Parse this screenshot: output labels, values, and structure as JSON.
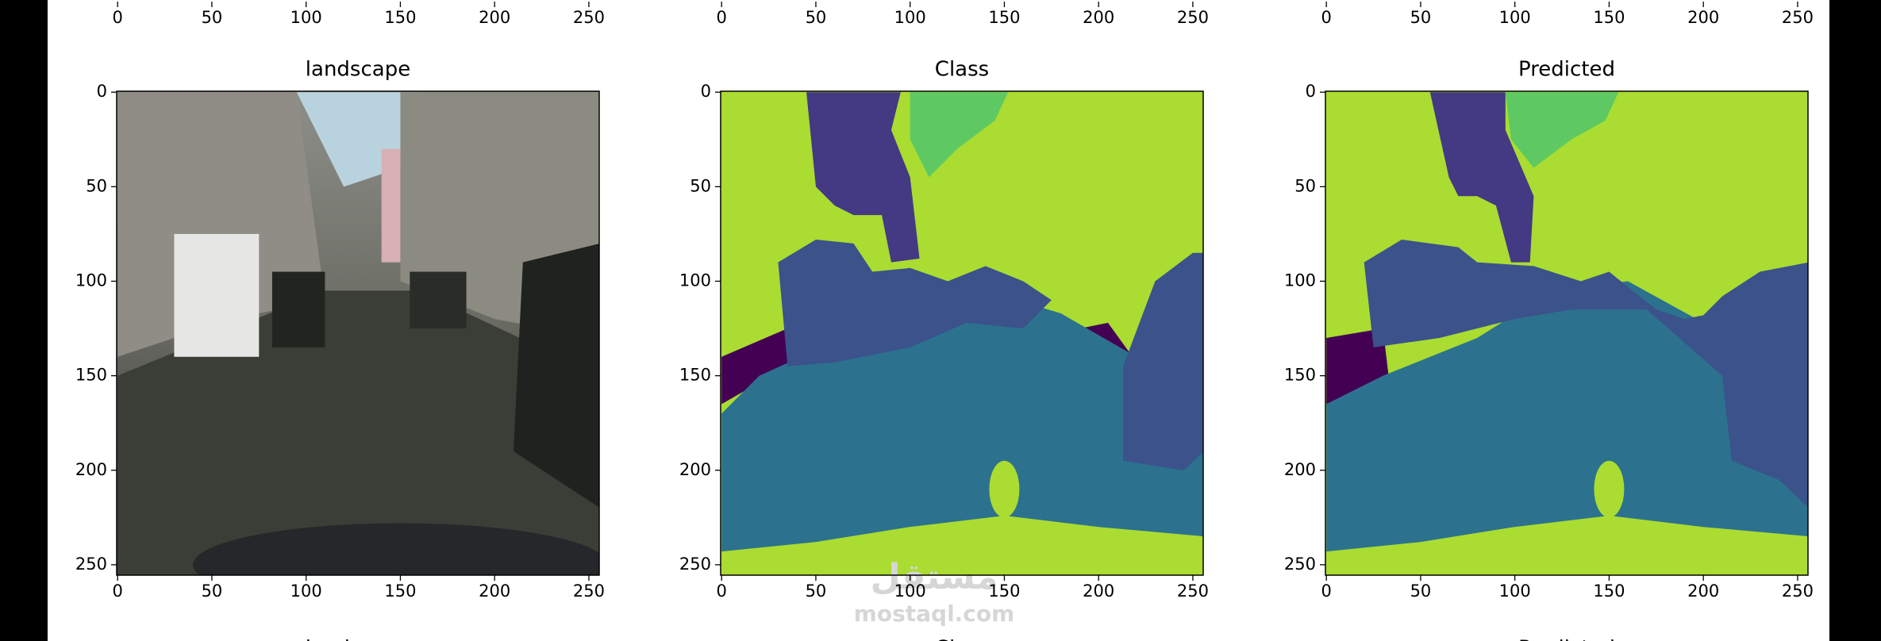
{
  "chart_data": [
    {
      "type": "image",
      "xlim": [
        -0.5,
        255.5
      ],
      "xticks": [
        0,
        50,
        100,
        150,
        200,
        250
      ]
    },
    {
      "type": "image",
      "xlim": [
        -0.5,
        255.5
      ],
      "xticks": [
        0,
        50,
        100,
        150,
        200,
        250
      ]
    },
    {
      "type": "image",
      "xlim": [
        -0.5,
        255.5
      ],
      "xticks": [
        0,
        50,
        100,
        150,
        200,
        250
      ]
    },
    {
      "type": "image",
      "title": "landscape",
      "xlim": [
        -0.5,
        255.5
      ],
      "ylim": [
        255.5,
        -0.5
      ],
      "xticks": [
        0,
        50,
        100,
        150,
        200,
        250
      ],
      "yticks": [
        0,
        50,
        100,
        150,
        200,
        250
      ]
    },
    {
      "type": "image",
      "title": "Class",
      "xlim": [
        -0.5,
        255.5
      ],
      "ylim": [
        255.5,
        -0.5
      ],
      "xticks": [
        0,
        50,
        100,
        150,
        200,
        250
      ],
      "yticks": [
        0,
        50,
        100,
        150,
        200,
        250
      ]
    },
    {
      "type": "image",
      "title": "Predicted",
      "xlim": [
        -0.5,
        255.5
      ],
      "ylim": [
        255.5,
        -0.5
      ],
      "xticks": [
        0,
        50,
        100,
        150,
        200,
        250
      ],
      "yticks": [
        0,
        50,
        100,
        150,
        200,
        250
      ]
    },
    {
      "type": "image",
      "title": "landscape"
    },
    {
      "type": "image",
      "title": "Class"
    },
    {
      "type": "image",
      "title": "Predicted"
    }
  ],
  "watermark": {
    "arabic": "مستقل",
    "latin": "mostaql.com"
  }
}
